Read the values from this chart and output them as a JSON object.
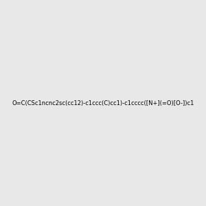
{
  "smiles": "O=C(CSc1ncnc2sc(cc12)-c1ccc(C)cc1)-c1cccc([N+](=O)[O-])c1",
  "image_size": 300,
  "background_color": "#e8e8e8",
  "bond_color": "#000000",
  "atom_colors": {
    "N": "#0000ff",
    "O": "#ff0000",
    "S": "#ccaa00"
  }
}
